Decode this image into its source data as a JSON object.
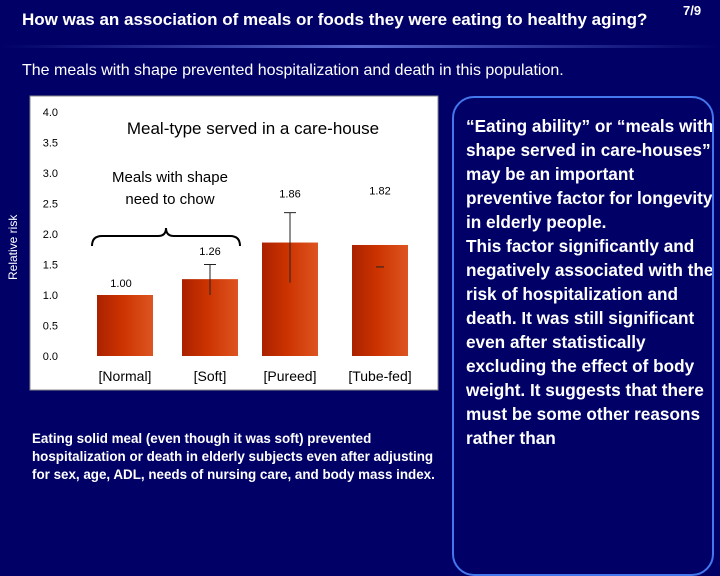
{
  "slide": {
    "title": "How was an association of meals or foods they were eating to healthy aging?",
    "page": "7/9",
    "subtitle": "The meals with shape prevented hospitalization and death in this population."
  },
  "chart_data": {
    "type": "bar",
    "title": "Meal-type served in a care-house",
    "ylabel": "Relative risk",
    "ylim": [
      0,
      4.0
    ],
    "yticks": [
      "0.0",
      "0.5",
      "1.0",
      "1.5",
      "2.0",
      "2.5",
      "3.0",
      "3.5",
      "4.0"
    ],
    "categories": [
      "[Normal]",
      "[Soft]",
      "[Pureed]",
      "[Tube-fed]"
    ],
    "values": [
      1.0,
      1.26,
      1.86,
      1.82
    ],
    "value_labels": [
      "1.00",
      "1.26",
      "1.86",
      "1.82"
    ],
    "error_bars": [
      null,
      [
        1.0,
        1.5
      ],
      [
        1.2,
        2.35
      ],
      null
    ],
    "bracket_label": "Meals with shape need to chow",
    "colors": {
      "bar": "#cc3300",
      "plot_bg": "#ffffff",
      "bracket": "#000000"
    }
  },
  "note": "Eating solid meal (even though it was soft) prevented hospitalization or death in elderly subjects even after adjusting for sex, age, ADL, needs of nursing care, and body mass index.",
  "side_box": {
    "paragraphs": [
      "“Eating ability” or “meals with shape served in care-houses” may be an important preventive factor for longevity in elderly people.",
      "This factor significantly and negatively associated with the risk of hospitalization and death. It was still significant even after statistically excluding the effect of body weight. It suggests that there must be some other reasons rather than"
    ]
  },
  "colors": {
    "background": "#000066",
    "box_border": "#4477ee",
    "text": "#ffffff"
  }
}
